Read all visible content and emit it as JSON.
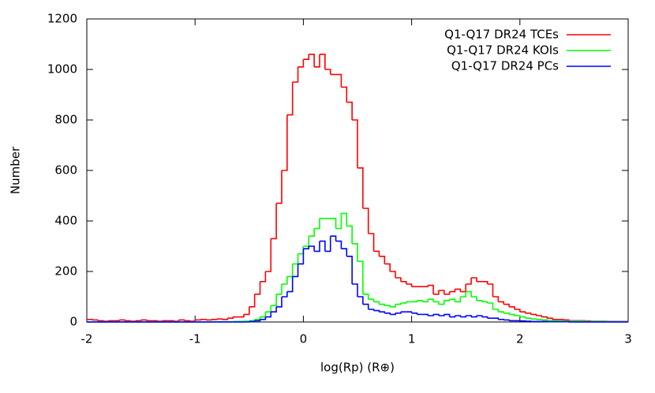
{
  "chart_data": {
    "type": "histogram",
    "xlabel": "log(Rp) (R⊕)",
    "ylabel": "Number",
    "bins": [
      -2,
      -1.95,
      -1.9,
      -1.85,
      -1.8,
      -1.75,
      -1.7,
      -1.65,
      -1.6,
      -1.55,
      -1.5,
      -1.45,
      -1.4,
      -1.35,
      -1.3,
      -1.25,
      -1.2,
      -1.15,
      -1.1,
      -1.05,
      -1,
      -0.95,
      -0.9,
      -0.85,
      -0.8,
      -0.75,
      -0.7,
      -0.65,
      -0.6,
      -0.55,
      -0.5,
      -0.45,
      -0.4,
      -0.35,
      -0.3,
      -0.25,
      -0.2,
      -0.15,
      -0.1,
      -0.05,
      0,
      0.05,
      0.1,
      0.15,
      0.2,
      0.25,
      0.3,
      0.35,
      0.4,
      0.45,
      0.5,
      0.55,
      0.6,
      0.65,
      0.7,
      0.75,
      0.8,
      0.85,
      0.9,
      0.95,
      1,
      1.05,
      1.1,
      1.15,
      1.2,
      1.25,
      1.3,
      1.35,
      1.4,
      1.45,
      1.5,
      1.55,
      1.6,
      1.65,
      1.7,
      1.75,
      1.8,
      1.85,
      1.9,
      1.95,
      2,
      2.05,
      2.1,
      2.15,
      2.2,
      2.25,
      2.3,
      2.35,
      2.4,
      2.45,
      2.5,
      2.55,
      2.6,
      2.65,
      2.7,
      2.75,
      2.8,
      2.85,
      2.9,
      2.95,
      3
    ],
    "series": [
      {
        "name": "Q1-Q17 DR24 TCEs",
        "color": "#ff0000",
        "values": [
          10,
          8,
          5,
          3,
          5,
          5,
          8,
          5,
          3,
          5,
          8,
          5,
          5,
          3,
          5,
          5,
          3,
          8,
          5,
          3,
          8,
          10,
          8,
          10,
          12,
          10,
          15,
          20,
          20,
          30,
          60,
          110,
          160,
          200,
          330,
          470,
          600,
          820,
          950,
          1010,
          1040,
          1060,
          1010,
          1060,
          1000,
          980,
          980,
          930,
          870,
          800,
          610,
          450,
          350,
          280,
          260,
          230,
          200,
          175,
          160,
          150,
          140,
          140,
          140,
          145,
          110,
          125,
          110,
          120,
          130,
          120,
          150,
          175,
          160,
          160,
          150,
          100,
          80,
          70,
          60,
          50,
          40,
          35,
          30,
          25,
          20,
          15,
          10,
          10,
          8,
          5,
          5,
          5,
          4,
          3,
          3,
          3,
          2,
          2,
          2,
          2
        ]
      },
      {
        "name": "Q1-Q17 DR24 KOIs",
        "color": "#00ff00",
        "values": [
          0,
          0,
          0,
          0,
          0,
          0,
          0,
          0,
          0,
          0,
          0,
          0,
          0,
          0,
          0,
          0,
          0,
          0,
          0,
          0,
          0,
          0,
          0,
          1,
          1,
          1,
          1,
          2,
          2,
          3,
          5,
          10,
          20,
          40,
          65,
          110,
          150,
          180,
          230,
          270,
          300,
          340,
          370,
          410,
          410,
          410,
          370,
          430,
          380,
          310,
          240,
          110,
          90,
          80,
          70,
          65,
          60,
          70,
          75,
          80,
          80,
          85,
          80,
          90,
          80,
          70,
          85,
          90,
          80,
          100,
          120,
          100,
          85,
          80,
          75,
          50,
          40,
          35,
          30,
          25,
          20,
          15,
          12,
          10,
          8,
          6,
          5,
          4,
          3,
          3,
          3,
          3,
          2,
          2,
          2,
          2,
          1,
          1,
          1,
          1
        ]
      },
      {
        "name": "Q1-Q17 DR24 PCs",
        "color": "#0000ff",
        "values": [
          0,
          0,
          0,
          0,
          0,
          0,
          0,
          0,
          0,
          0,
          0,
          0,
          0,
          0,
          0,
          0,
          0,
          0,
          0,
          0,
          0,
          0,
          0,
          0,
          0,
          0,
          0,
          0,
          0,
          0,
          2,
          5,
          10,
          20,
          40,
          60,
          100,
          120,
          180,
          230,
          290,
          300,
          280,
          320,
          280,
          340,
          320,
          290,
          260,
          150,
          100,
          70,
          50,
          45,
          40,
          35,
          30,
          35,
          40,
          40,
          35,
          30,
          30,
          25,
          30,
          25,
          30,
          20,
          25,
          20,
          25,
          20,
          25,
          20,
          15,
          15,
          10,
          8,
          5,
          5,
          4,
          3,
          2,
          2,
          2,
          1,
          1,
          1,
          1,
          0,
          0,
          0,
          0,
          0,
          0,
          0,
          0,
          0,
          0,
          0
        ]
      }
    ],
    "xlim": [
      -2,
      3
    ],
    "xticks": [
      -2,
      -1,
      0,
      1,
      2,
      3
    ],
    "ylim": [
      0,
      1200
    ],
    "yticks": [
      0,
      200,
      400,
      600,
      800,
      1000,
      1200
    ],
    "legend": "top-right"
  }
}
